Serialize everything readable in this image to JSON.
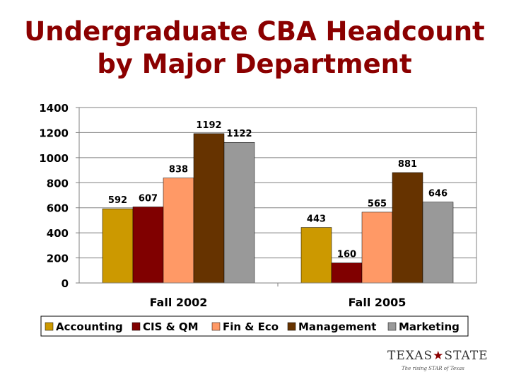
{
  "title": {
    "line1": "Undergraduate CBA Headcount",
    "line2": "by Major Department"
  },
  "chart_data": {
    "type": "bar",
    "categories": [
      "Fall 2002",
      "Fall 2005"
    ],
    "series": [
      {
        "name": "Accounting",
        "values": [
          592,
          443
        ],
        "color": "#cc9900"
      },
      {
        "name": "CIS & QM",
        "values": [
          607,
          160
        ],
        "color": "#800000"
      },
      {
        "name": "Fin & Eco",
        "values": [
          838,
          565
        ],
        "color": "#ff9966"
      },
      {
        "name": "Management",
        "values": [
          1192,
          881
        ],
        "color": "#663300"
      },
      {
        "name": "Marketing",
        "values": [
          1122,
          646
        ],
        "color": "#999999"
      }
    ],
    "yticks": [
      0,
      200,
      400,
      600,
      800,
      1000,
      1200,
      1400
    ],
    "ylim": [
      0,
      1400
    ],
    "grid": true,
    "legend": "bottom"
  },
  "logo": {
    "name_left": "TEXAS",
    "name_right": "STATE",
    "tagline": "The rising STAR of Texas",
    "star_color": "#8b0000"
  }
}
